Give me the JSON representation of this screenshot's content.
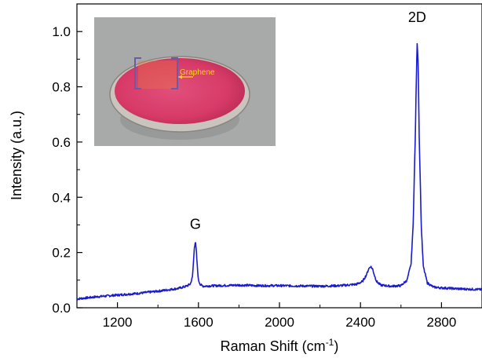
{
  "chart_data": {
    "type": "line",
    "title": "",
    "xlabel": "Raman Shift (cm",
    "xlabel_sup": "-1",
    "xlabel_close": ")",
    "ylabel": "Intensity (a.u.)",
    "xlim": [
      1000,
      3000
    ],
    "ylim": [
      0.0,
      1.1
    ],
    "xticks": [
      1200,
      1600,
      2000,
      2400,
      2800
    ],
    "yticks": [
      0.0,
      0.2,
      0.4,
      0.6,
      0.8,
      1.0
    ],
    "xtick_labels": [
      "1200",
      "1600",
      "2000",
      "2400",
      "2800"
    ],
    "ytick_labels": [
      "0.0",
      "0.2",
      "0.4",
      "0.6",
      "0.8",
      "1.0"
    ],
    "grid": false,
    "series": [
      {
        "color": "#1a1ad0",
        "x": [
          1000,
          1100,
          1200,
          1300,
          1400,
          1500,
          1540,
          1560,
          1570,
          1575,
          1580,
          1585,
          1590,
          1595,
          1600,
          1610,
          1625,
          1650,
          1700,
          1800,
          1900,
          2000,
          2100,
          2200,
          2300,
          2380,
          2410,
          2430,
          2440,
          2450,
          2460,
          2470,
          2480,
          2500,
          2550,
          2600,
          2630,
          2650,
          2660,
          2670,
          2675,
          2680,
          2685,
          2690,
          2700,
          2710,
          2730,
          2760,
          2800,
          2900,
          3000
        ],
        "y": [
          0.032,
          0.04,
          0.046,
          0.052,
          0.06,
          0.07,
          0.078,
          0.086,
          0.11,
          0.16,
          0.22,
          0.24,
          0.2,
          0.14,
          0.1,
          0.083,
          0.078,
          0.079,
          0.08,
          0.082,
          0.08,
          0.08,
          0.079,
          0.078,
          0.08,
          0.085,
          0.095,
          0.12,
          0.14,
          0.15,
          0.14,
          0.115,
          0.095,
          0.082,
          0.078,
          0.08,
          0.1,
          0.16,
          0.3,
          0.6,
          0.8,
          0.96,
          0.88,
          0.62,
          0.3,
          0.15,
          0.09,
          0.075,
          0.072,
          0.068,
          0.066
        ]
      }
    ],
    "annotations": [
      {
        "text": "G",
        "x": 1585,
        "y": 0.285
      },
      {
        "text": "2D",
        "x": 2680,
        "y": 1.035
      }
    ],
    "inset": {
      "label": "Graphene"
    }
  }
}
